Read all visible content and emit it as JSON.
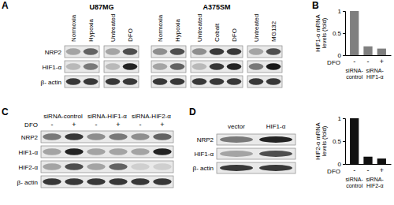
{
  "panel_labels": [
    "A",
    "B",
    "C",
    "D"
  ],
  "chart_data": [
    {
      "type": "bar",
      "categories": [
        "-",
        "-",
        "+"
      ],
      "values": [
        1.0,
        0.2,
        0.15
      ],
      "color": "#7f7f7f",
      "xlabel": "DFO",
      "ylabel": [
        "HIF1-α mRNA",
        "levels (fold)"
      ],
      "groups": [
        {
          "label": [
            "siRNA-",
            "control"
          ],
          "indices": [
            0
          ]
        },
        {
          "label": [
            "siRNA-",
            "HIF1-α"
          ],
          "indices": [
            1,
            2
          ]
        }
      ],
      "ylim": [
        0,
        1
      ],
      "yticks": [
        0,
        0.5,
        1
      ],
      "grid": false
    },
    {
      "type": "bar",
      "categories": [
        "-",
        "-",
        "+"
      ],
      "values": [
        1.0,
        0.16,
        0.12
      ],
      "color": "#111111",
      "xlabel": "DFO",
      "ylabel": [
        "HIF2-α mRNA",
        "levels (fold)"
      ],
      "groups": [
        {
          "label": [
            "siRNA-",
            "control"
          ],
          "indices": [
            0
          ]
        },
        {
          "label": [
            "siRNA-",
            "HIF2-α"
          ],
          "indices": [
            1,
            2
          ]
        }
      ],
      "ylim": [
        0,
        1
      ],
      "yticks": [
        0,
        0.5,
        1
      ],
      "grid": false
    }
  ],
  "blots": {
    "intensity_scale": [
      0,
      1
    ],
    "A": {
      "rows": [
        "NRP2",
        "HIF1-α",
        "β- actin"
      ],
      "groups": [
        {
          "title": "U87MG",
          "blots": [
            {
              "lanes": [
                "Normoxia",
                "Hypoxia"
              ],
              "bands": [
                [
                  0.3,
                  0.6
                ],
                [
                  0.2,
                  0.5
                ],
                [
                  0.8,
                  0.8
                ]
              ]
            },
            {
              "lanes": [
                "Untreated",
                "DFO"
              ],
              "bands": [
                [
                  0.3,
                  0.7
                ],
                [
                  0.2,
                  0.9
                ],
                [
                  0.8,
                  0.8
                ]
              ]
            }
          ]
        },
        {
          "title": "A375SM",
          "blots": [
            {
              "lanes": [
                "Normoxia",
                "Hypoxia"
              ],
              "bands": [
                [
                  0.4,
                  0.7
                ],
                [
                  0.3,
                  0.6
                ],
                [
                  0.8,
                  0.8
                ]
              ]
            },
            {
              "lanes": [
                "Untreated",
                "Cobalt",
                "DFO"
              ],
              "bands": [
                [
                  0.4,
                  0.8,
                  0.8
                ],
                [
                  0.2,
                  0.8,
                  0.9
                ],
                [
                  0.8,
                  0.8,
                  0.8
                ]
              ]
            },
            {
              "lanes": [
                "Untreated",
                "MG132"
              ],
              "bands": [
                [
                  0.3,
                  0.7
                ],
                [
                  0.5,
                  0.95
                ],
                [
                  0.8,
                  0.8
                ]
              ]
            }
          ]
        }
      ]
    },
    "C": {
      "rows": [
        "NRP2",
        "HIF1-α",
        "HIF2-α",
        "β- actin"
      ],
      "lane_row_label": "DFO",
      "header_groups": [
        {
          "label": "siRNA-control",
          "lanes": [
            "-",
            "+"
          ]
        },
        {
          "label": "siRNA-HIF1-α",
          "lanes": [
            "-",
            "+"
          ]
        },
        {
          "label": "siRNA-HIF2-α",
          "lanes": [
            "-",
            "+"
          ]
        }
      ],
      "bands": [
        [
          0.5,
          0.8,
          0.4,
          0.5,
          0.4,
          0.6
        ],
        [
          0.3,
          0.9,
          0.3,
          0.3,
          0.3,
          0.9
        ],
        [
          0.3,
          0.7,
          0.3,
          0.6,
          0.1,
          0.1
        ],
        [
          0.8,
          0.8,
          0.8,
          0.8,
          0.8,
          0.8
        ]
      ]
    },
    "D": {
      "rows": [
        "NRP2",
        "HIF1-α",
        "β- actin"
      ],
      "lanes": [
        "vector",
        "HIF1-α"
      ],
      "bands": [
        [
          0.5,
          0.9
        ],
        [
          0.3,
          0.7
        ],
        [
          0.8,
          0.8
        ]
      ]
    }
  }
}
